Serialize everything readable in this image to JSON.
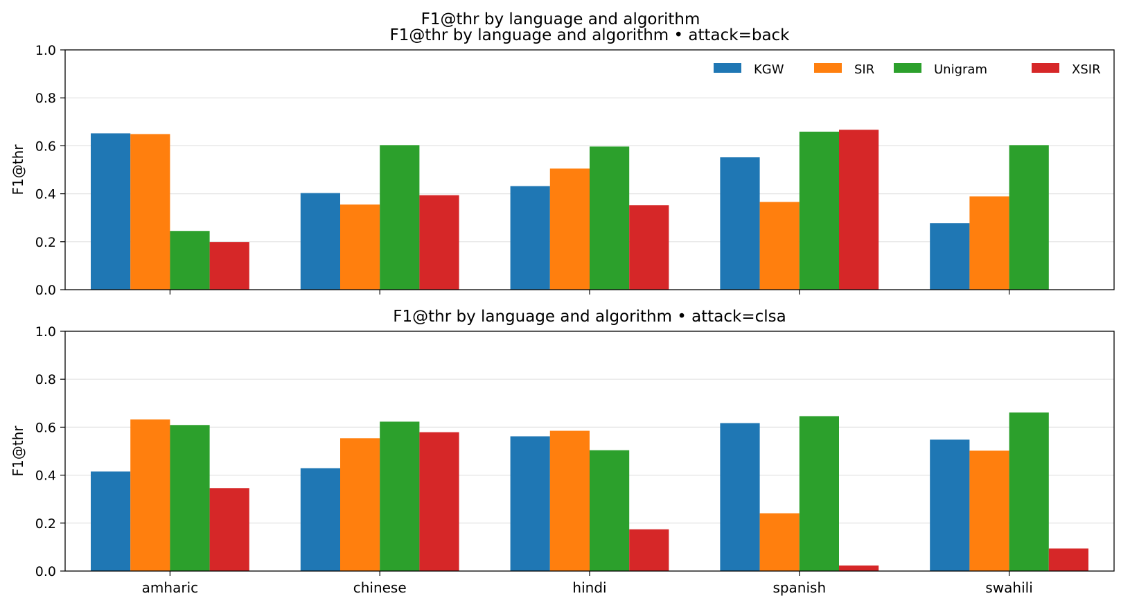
{
  "figure": {
    "suptitle": "F1@thr by language and algorithm"
  },
  "legend": {
    "placement": "top-right",
    "entries": [
      {
        "name": "KGW",
        "color": "#1f77b4"
      },
      {
        "name": "SIR",
        "color": "#ff7f0e"
      },
      {
        "name": "Unigram",
        "color": "#2ca02c"
      },
      {
        "name": "XSIR",
        "color": "#d62728"
      }
    ]
  },
  "chart_data": [
    {
      "type": "bar",
      "title": "F1@thr by language and algorithm • attack=back",
      "xlabel": "",
      "ylabel": "F1@thr",
      "ylim": [
        0,
        1.0
      ],
      "yticks": [
        "0.0",
        "0.2",
        "0.4",
        "0.6",
        "0.8",
        "1.0"
      ],
      "grid": "horizontal",
      "categories": [
        "amharic",
        "chinese",
        "hindi",
        "spanish",
        "swahili"
      ],
      "show_xtick_labels": false,
      "series": [
        {
          "name": "KGW",
          "color": "#1f77b4",
          "values": [
            0.652,
            0.403,
            0.432,
            0.552,
            0.277
          ]
        },
        {
          "name": "SIR",
          "color": "#ff7f0e",
          "values": [
            0.649,
            0.355,
            0.505,
            0.366,
            0.389
          ]
        },
        {
          "name": "Unigram",
          "color": "#2ca02c",
          "values": [
            0.245,
            0.603,
            0.597,
            0.659,
            0.603
          ]
        },
        {
          "name": "XSIR",
          "color": "#d62728",
          "values": [
            0.199,
            0.394,
            0.352,
            0.667,
            null
          ]
        }
      ]
    },
    {
      "type": "bar",
      "title": "F1@thr by language and algorithm • attack=clsa",
      "xlabel": "",
      "ylabel": "F1@thr",
      "ylim": [
        0,
        1.0
      ],
      "yticks": [
        "0.0",
        "0.2",
        "0.4",
        "0.6",
        "0.8",
        "1.0"
      ],
      "grid": "horizontal",
      "categories": [
        "amharic",
        "chinese",
        "hindi",
        "spanish",
        "swahili"
      ],
      "show_xtick_labels": true,
      "series": [
        {
          "name": "KGW",
          "color": "#1f77b4",
          "values": [
            0.415,
            0.429,
            0.562,
            0.617,
            0.548
          ]
        },
        {
          "name": "SIR",
          "color": "#ff7f0e",
          "values": [
            0.632,
            0.554,
            0.585,
            0.241,
            0.502
          ]
        },
        {
          "name": "Unigram",
          "color": "#2ca02c",
          "values": [
            0.609,
            0.623,
            0.504,
            0.646,
            0.661
          ]
        },
        {
          "name": "XSIR",
          "color": "#d62728",
          "values": [
            0.346,
            0.579,
            0.174,
            0.023,
            0.094
          ]
        }
      ]
    }
  ]
}
